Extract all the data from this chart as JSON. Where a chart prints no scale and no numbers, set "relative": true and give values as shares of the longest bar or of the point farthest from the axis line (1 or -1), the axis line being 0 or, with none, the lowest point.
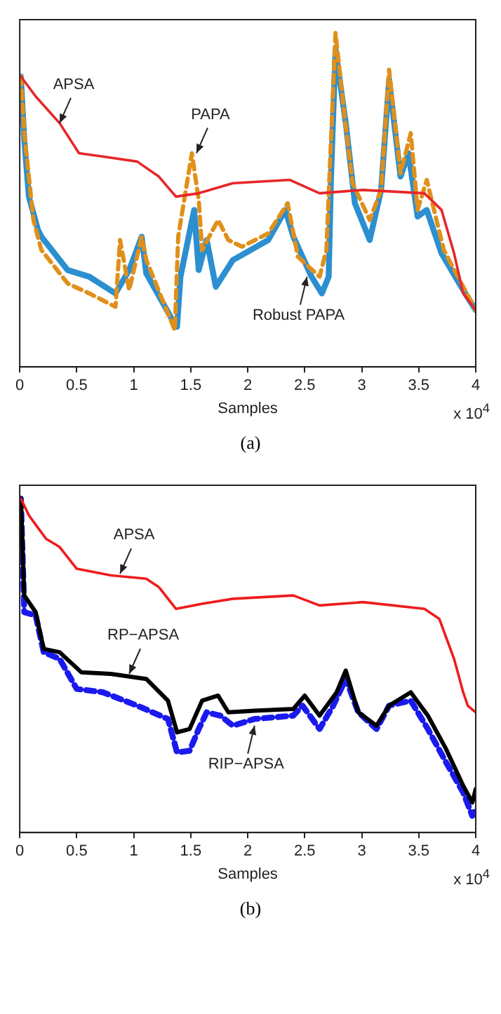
{
  "chart_data": [
    {
      "type": "line",
      "relative": true,
      "xlabel": "Samples",
      "xlim": [
        0,
        4
      ],
      "xticks": [
        0,
        0.5,
        1,
        1.5,
        2,
        2.5,
        3,
        3.5,
        4
      ],
      "grid": false,
      "legend": false,
      "tick_labels": "x",
      "marker": "none",
      "annotations": [
        "x 10$^{4}$",
        "(a)",
        {
          "text": "APSA",
          "x": 0.35,
          "y": 0.73
        },
        {
          "text": "PAPA",
          "x": 1.55,
          "y": 0.64
        },
        {
          "text": "Robust PAPA",
          "x": 2.52,
          "y": 0.27
        }
      ],
      "series": [
        {
          "color": "#e8262a",
          "line_style": "solid",
          "x": [
            0.01,
            0.14,
            0.35,
            0.52,
            0.73,
            1.03,
            1.22,
            1.37,
            1.57,
            1.87,
            2.37,
            2.63,
            3.01,
            3.55,
            3.7,
            3.81,
            3.89,
            4.0
          ],
          "values": [
            0.87,
            0.81,
            0.73,
            0.64,
            0.63,
            0.615,
            0.57,
            0.51,
            0.52,
            0.55,
            0.56,
            0.52,
            0.53,
            0.52,
            0.47,
            0.34,
            0.22,
            0.17
          ]
        },
        {
          "color": "#e0901a",
          "line_style": "dashed",
          "x": [
            0.01,
            0.04,
            0.12,
            0.19,
            0.42,
            0.61,
            0.84,
            0.88,
            0.96,
            1.07,
            1.11,
            1.36,
            1.39,
            1.51,
            1.57,
            1.6,
            1.74,
            1.83,
            1.95,
            2.18,
            2.35,
            2.44,
            2.63,
            2.69,
            2.77,
            2.86,
            2.92,
            3.07,
            3.17,
            3.24,
            3.34,
            3.43,
            3.49,
            3.57,
            3.72,
            3.89,
            4.0
          ],
          "values": [
            0.87,
            0.7,
            0.44,
            0.35,
            0.25,
            0.22,
            0.18,
            0.38,
            0.23,
            0.39,
            0.32,
            0.11,
            0.39,
            0.64,
            0.5,
            0.35,
            0.44,
            0.38,
            0.36,
            0.4,
            0.49,
            0.33,
            0.27,
            0.35,
            1.0,
            0.72,
            0.55,
            0.44,
            0.53,
            0.89,
            0.58,
            0.7,
            0.47,
            0.56,
            0.35,
            0.24,
            0.17
          ]
        },
        {
          "color": "#2b8fd0",
          "line_style": "solid",
          "x": [
            0.01,
            0.04,
            0.08,
            0.16,
            0.19,
            0.42,
            0.61,
            0.84,
            0.96,
            1.07,
            1.11,
            1.34,
            1.38,
            1.41,
            1.53,
            1.57,
            1.64,
            1.72,
            1.87,
            2.18,
            2.33,
            2.4,
            2.56,
            2.65,
            2.71,
            2.73,
            2.77,
            2.86,
            2.94,
            3.07,
            3.17,
            3.24,
            3.34,
            3.41,
            3.49,
            3.57,
            3.7,
            3.89,
            4.0
          ],
          "values": [
            0.87,
            0.68,
            0.51,
            0.41,
            0.39,
            0.29,
            0.27,
            0.22,
            0.29,
            0.39,
            0.28,
            0.14,
            0.12,
            0.27,
            0.47,
            0.29,
            0.38,
            0.24,
            0.32,
            0.38,
            0.47,
            0.39,
            0.27,
            0.22,
            0.27,
            0.56,
            0.95,
            0.73,
            0.49,
            0.38,
            0.53,
            0.86,
            0.57,
            0.64,
            0.45,
            0.47,
            0.34,
            0.23,
            0.17
          ]
        }
      ]
    },
    {
      "type": "line",
      "relative": true,
      "xlabel": "Samples",
      "xlim": [
        0,
        4
      ],
      "xticks": [
        0,
        0.5,
        1,
        1.5,
        2,
        2.5,
        3,
        3.5,
        4
      ],
      "grid": false,
      "legend": false,
      "tick_labels": "x",
      "marker": "none",
      "annotations": [
        "x 10$^{4}$",
        "(b)",
        {
          "text": "APSA",
          "x": 0.88,
          "y": 0.775
        },
        {
          "text": "RP−APSA",
          "x": 0.96,
          "y": 0.475
        },
        {
          "text": "RIP−APSA",
          "x": 2.06,
          "y": 0.32
        }
      ],
      "series": [
        {
          "color": "#ee1c1c",
          "line_style": "solid",
          "x": [
            0.01,
            0.08,
            0.23,
            0.35,
            0.5,
            0.8,
            1.11,
            1.22,
            1.37,
            1.6,
            1.87,
            2.4,
            2.63,
            3.01,
            3.55,
            3.68,
            3.81,
            3.89,
            3.93,
            4.0
          ],
          "values": [
            1.0,
            0.95,
            0.88,
            0.855,
            0.79,
            0.77,
            0.76,
            0.735,
            0.67,
            0.685,
            0.7,
            0.71,
            0.68,
            0.69,
            0.67,
            0.64,
            0.52,
            0.42,
            0.38,
            0.36
          ]
        },
        {
          "color": "#000000",
          "line_style": "solid",
          "x": [
            0.01,
            0.04,
            0.14,
            0.21,
            0.35,
            0.54,
            0.8,
            1.11,
            1.3,
            1.38,
            1.49,
            1.6,
            1.74,
            1.83,
            2.06,
            2.4,
            2.5,
            2.63,
            2.78,
            2.86,
            2.97,
            3.13,
            3.24,
            3.43,
            3.58,
            3.74,
            3.89,
            3.97,
            4.0
          ],
          "values": [
            1.0,
            0.71,
            0.66,
            0.55,
            0.54,
            0.48,
            0.475,
            0.46,
            0.395,
            0.3,
            0.31,
            0.395,
            0.41,
            0.36,
            0.365,
            0.37,
            0.41,
            0.35,
            0.42,
            0.485,
            0.36,
            0.32,
            0.38,
            0.42,
            0.35,
            0.25,
            0.14,
            0.09,
            0.13
          ]
        },
        {
          "color": "#1a1aee",
          "line_style": "dashed",
          "x": [
            0.01,
            0.04,
            0.14,
            0.21,
            0.35,
            0.5,
            0.73,
            1.03,
            1.3,
            1.38,
            1.49,
            1.57,
            1.64,
            1.76,
            1.87,
            2.06,
            2.4,
            2.48,
            2.63,
            2.75,
            2.86,
            2.97,
            3.13,
            3.24,
            3.43,
            3.58,
            3.74,
            3.89,
            3.97,
            4.0
          ],
          "values": [
            1.0,
            0.66,
            0.65,
            0.54,
            0.52,
            0.43,
            0.42,
            0.38,
            0.34,
            0.24,
            0.245,
            0.31,
            0.36,
            0.35,
            0.32,
            0.34,
            0.35,
            0.38,
            0.31,
            0.38,
            0.46,
            0.36,
            0.31,
            0.38,
            0.395,
            0.31,
            0.21,
            0.12,
            0.05,
            0.07
          ]
        }
      ]
    }
  ]
}
